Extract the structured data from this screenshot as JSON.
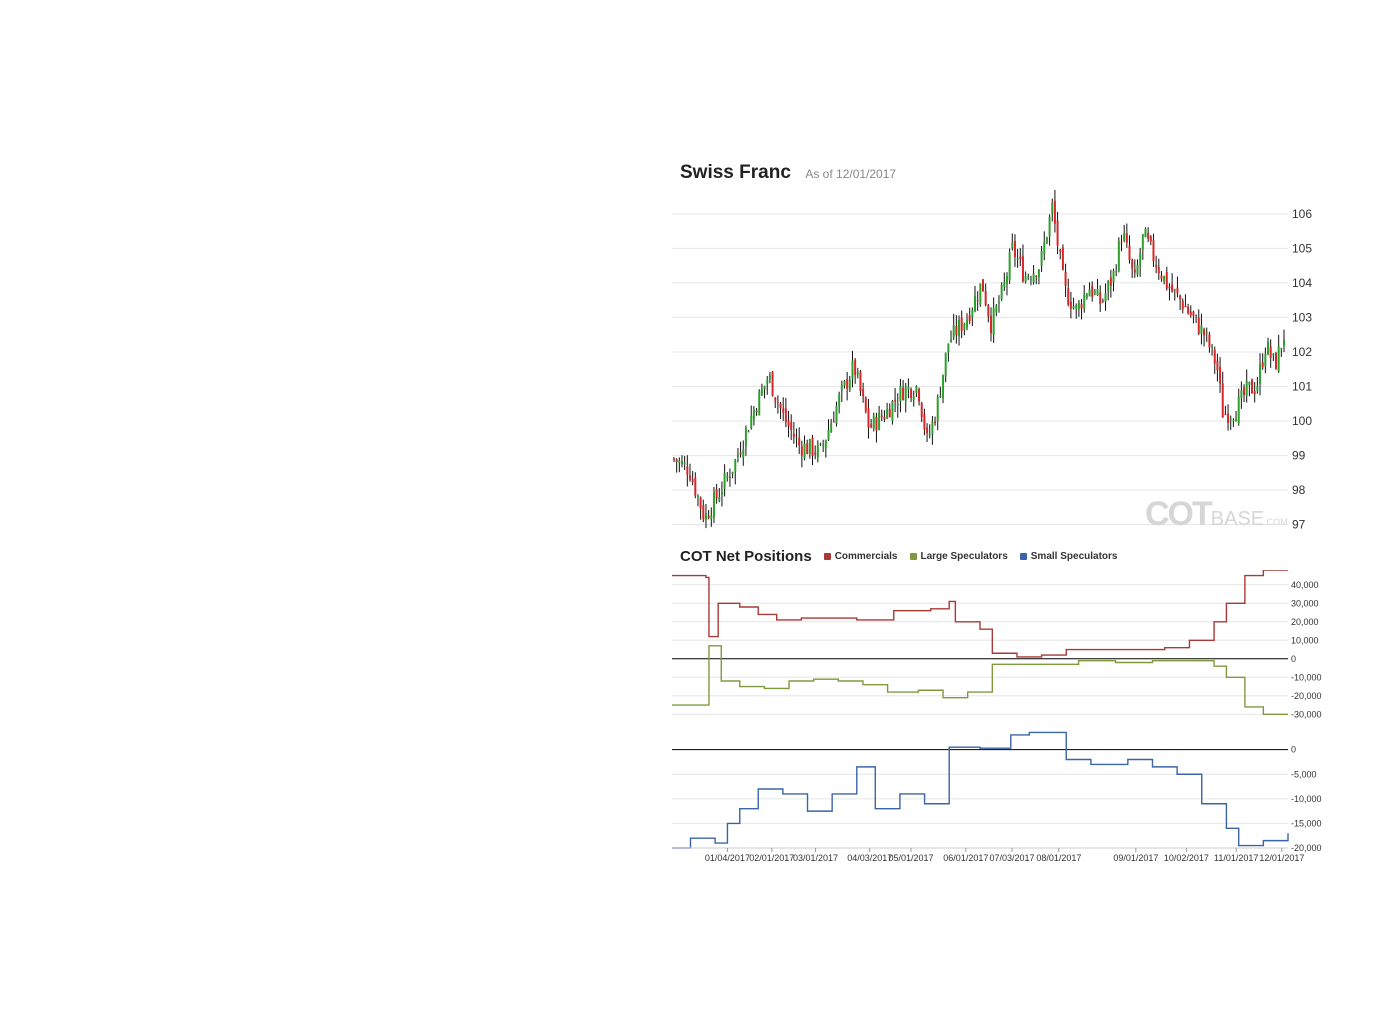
{
  "header": {
    "title": "Swiss Franc",
    "as_of": "As of 12/01/2017"
  },
  "watermark": {
    "part1": "COT",
    "part2": "BASE",
    "part3": ".COM"
  },
  "cot": {
    "title": "COT Net Positions",
    "legend": [
      {
        "label": "Commercials",
        "color": "#a83a36"
      },
      {
        "label": "Large Speculators",
        "color": "#7f9a3d"
      },
      {
        "label": "Small Speculators",
        "color": "#3a64a8"
      }
    ]
  },
  "chart_data": [
    {
      "type": "candlestick",
      "title": "Swiss Franc",
      "subtitle": "As of 12/01/2017",
      "ylim": [
        96.7,
        106.4
      ],
      "y_ticks": [
        "106",
        "105",
        "104",
        "103",
        "102",
        "101",
        "100",
        "99",
        "98",
        "97"
      ],
      "grid": true,
      "up_color": "#2ca02c",
      "down_color": "#d62728",
      "close_path": [
        {
          "t": 0,
          "v": 98.9
        },
        {
          "t": 0.025,
          "v": 98.6
        },
        {
          "t": 0.05,
          "v": 97.2
        },
        {
          "t": 0.07,
          "v": 97.8
        },
        {
          "t": 0.1,
          "v": 98.8
        },
        {
          "t": 0.13,
          "v": 100.3
        },
        {
          "t": 0.155,
          "v": 101.3
        },
        {
          "t": 0.18,
          "v": 100.1
        },
        {
          "t": 0.205,
          "v": 99.3
        },
        {
          "t": 0.24,
          "v": 99.1
        },
        {
          "t": 0.27,
          "v": 100.6
        },
        {
          "t": 0.295,
          "v": 101.6
        },
        {
          "t": 0.32,
          "v": 99.8
        },
        {
          "t": 0.345,
          "v": 100.2
        },
        {
          "t": 0.375,
          "v": 100.9
        },
        {
          "t": 0.4,
          "v": 101.0
        },
        {
          "t": 0.415,
          "v": 99.4
        },
        {
          "t": 0.43,
          "v": 100.3
        },
        {
          "t": 0.45,
          "v": 102.3
        },
        {
          "t": 0.48,
          "v": 103.0
        },
        {
          "t": 0.505,
          "v": 104.0
        },
        {
          "t": 0.52,
          "v": 102.8
        },
        {
          "t": 0.54,
          "v": 103.8
        },
        {
          "t": 0.555,
          "v": 105.0
        },
        {
          "t": 0.575,
          "v": 104.2
        },
        {
          "t": 0.6,
          "v": 104.5
        },
        {
          "t": 0.62,
          "v": 106.2
        },
        {
          "t": 0.64,
          "v": 103.8
        },
        {
          "t": 0.66,
          "v": 103.2
        },
        {
          "t": 0.68,
          "v": 103.9
        },
        {
          "t": 0.7,
          "v": 103.4
        },
        {
          "t": 0.72,
          "v": 104.2
        },
        {
          "t": 0.735,
          "v": 105.5
        },
        {
          "t": 0.755,
          "v": 104.0
        },
        {
          "t": 0.77,
          "v": 105.4
        },
        {
          "t": 0.79,
          "v": 104.6
        },
        {
          "t": 0.81,
          "v": 103.9
        },
        {
          "t": 0.83,
          "v": 103.5
        },
        {
          "t": 0.85,
          "v": 103.0
        },
        {
          "t": 0.87,
          "v": 102.5
        },
        {
          "t": 0.89,
          "v": 101.6
        },
        {
          "t": 0.9,
          "v": 100.2
        },
        {
          "t": 0.92,
          "v": 100.3
        },
        {
          "t": 0.94,
          "v": 100.9
        },
        {
          "t": 0.955,
          "v": 101.0
        },
        {
          "t": 0.97,
          "v": 102.2
        },
        {
          "t": 0.985,
          "v": 101.6
        },
        {
          "t": 1,
          "v": 102.5
        }
      ]
    },
    {
      "type": "line",
      "title": "COT Net Positions",
      "x_tick_labels": [
        "01/04/2017",
        "02/01/2017",
        "03/01/2017",
        "04/03/2017",
        "05/01/2017",
        "06/01/2017",
        "07/03/2017",
        "08/01/2017",
        "09/01/2017",
        "10/02/2017",
        "11/01/2017",
        "12/01/2017"
      ],
      "x_tick_positions": [
        0.09,
        0.162,
        0.233,
        0.321,
        0.388,
        0.477,
        0.552,
        0.628,
        0.753,
        0.835,
        0.916,
        0.99
      ],
      "panels": [
        {
          "ylim": [
            -32000,
            48000
          ],
          "y_ticks": [
            40000,
            30000,
            20000,
            10000,
            0,
            -10000,
            -20000,
            -30000
          ],
          "y_tick_labels": [
            "40,000",
            "30,000",
            "20,000",
            "10,000",
            "0",
            "-10,000",
            "-20,000",
            "-30,000"
          ],
          "series": [
            {
              "name": "Commercials",
              "color": "#a83a36",
              "points": [
                {
                  "t": 0,
                  "v": 45000
                },
                {
                  "t": 0.055,
                  "v": 44000
                },
                {
                  "t": 0.06,
                  "v": 12000
                },
                {
                  "t": 0.075,
                  "v": 30000
                },
                {
                  "t": 0.11,
                  "v": 28000
                },
                {
                  "t": 0.14,
                  "v": 24000
                },
                {
                  "t": 0.17,
                  "v": 21000
                },
                {
                  "t": 0.21,
                  "v": 22000
                },
                {
                  "t": 0.25,
                  "v": 22000
                },
                {
                  "t": 0.3,
                  "v": 21000
                },
                {
                  "t": 0.36,
                  "v": 26000
                },
                {
                  "t": 0.42,
                  "v": 27000
                },
                {
                  "t": 0.45,
                  "v": 31000
                },
                {
                  "t": 0.46,
                  "v": 20000
                },
                {
                  "t": 0.5,
                  "v": 16000
                },
                {
                  "t": 0.52,
                  "v": 3000
                },
                {
                  "t": 0.56,
                  "v": 1000
                },
                {
                  "t": 0.6,
                  "v": 2000
                },
                {
                  "t": 0.64,
                  "v": 5000
                },
                {
                  "t": 0.7,
                  "v": 5000
                },
                {
                  "t": 0.76,
                  "v": 5000
                },
                {
                  "t": 0.8,
                  "v": 6000
                },
                {
                  "t": 0.84,
                  "v": 10000
                },
                {
                  "t": 0.88,
                  "v": 20000
                },
                {
                  "t": 0.9,
                  "v": 30000
                },
                {
                  "t": 0.93,
                  "v": 45000
                },
                {
                  "t": 0.96,
                  "v": 48000
                },
                {
                  "t": 1,
                  "v": 48000
                }
              ]
            },
            {
              "name": "Large Speculators",
              "color": "#7f9a3d",
              "points": [
                {
                  "t": 0,
                  "v": -25000
                },
                {
                  "t": 0.055,
                  "v": -25000
                },
                {
                  "t": 0.06,
                  "v": 7000
                },
                {
                  "t": 0.07,
                  "v": 7000
                },
                {
                  "t": 0.08,
                  "v": -12000
                },
                {
                  "t": 0.11,
                  "v": -15000
                },
                {
                  "t": 0.15,
                  "v": -16000
                },
                {
                  "t": 0.19,
                  "v": -12000
                },
                {
                  "t": 0.23,
                  "v": -11000
                },
                {
                  "t": 0.27,
                  "v": -12000
                },
                {
                  "t": 0.31,
                  "v": -14000
                },
                {
                  "t": 0.35,
                  "v": -18000
                },
                {
                  "t": 0.4,
                  "v": -17000
                },
                {
                  "t": 0.44,
                  "v": -21000
                },
                {
                  "t": 0.48,
                  "v": -18000
                },
                {
                  "t": 0.52,
                  "v": -3000
                },
                {
                  "t": 0.56,
                  "v": -3000
                },
                {
                  "t": 0.6,
                  "v": -3000
                },
                {
                  "t": 0.66,
                  "v": -1000
                },
                {
                  "t": 0.72,
                  "v": -2000
                },
                {
                  "t": 0.78,
                  "v": -1000
                },
                {
                  "t": 0.84,
                  "v": -1000
                },
                {
                  "t": 0.88,
                  "v": -4000
                },
                {
                  "t": 0.9,
                  "v": -10000
                },
                {
                  "t": 0.93,
                  "v": -26000
                },
                {
                  "t": 0.96,
                  "v": -30000
                },
                {
                  "t": 1,
                  "v": -30000
                }
              ]
            }
          ]
        },
        {
          "ylim": [
            -20000,
            4000
          ],
          "y_ticks": [
            0,
            -5000,
            -10000,
            -15000,
            -20000
          ],
          "y_tick_labels": [
            "0",
            "-5,000",
            "-10,000",
            "-15,000",
            "-20,000"
          ],
          "series": [
            {
              "name": "Small Speculators",
              "color": "#3a64a8",
              "points": [
                {
                  "t": 0,
                  "v": -20000
                },
                {
                  "t": 0.03,
                  "v": -18000
                },
                {
                  "t": 0.07,
                  "v": -19000
                },
                {
                  "t": 0.09,
                  "v": -15000
                },
                {
                  "t": 0.11,
                  "v": -12000
                },
                {
                  "t": 0.14,
                  "v": -8000
                },
                {
                  "t": 0.18,
                  "v": -9000
                },
                {
                  "t": 0.22,
                  "v": -12500
                },
                {
                  "t": 0.26,
                  "v": -9000
                },
                {
                  "t": 0.3,
                  "v": -3500
                },
                {
                  "t": 0.33,
                  "v": -12000
                },
                {
                  "t": 0.37,
                  "v": -9000
                },
                {
                  "t": 0.41,
                  "v": -11000
                },
                {
                  "t": 0.45,
                  "v": 500
                },
                {
                  "t": 0.5,
                  "v": 300
                },
                {
                  "t": 0.55,
                  "v": 3000
                },
                {
                  "t": 0.58,
                  "v": 3500
                },
                {
                  "t": 0.62,
                  "v": 3500
                },
                {
                  "t": 0.64,
                  "v": -2000
                },
                {
                  "t": 0.68,
                  "v": -3000
                },
                {
                  "t": 0.74,
                  "v": -2000
                },
                {
                  "t": 0.78,
                  "v": -3500
                },
                {
                  "t": 0.82,
                  "v": -5000
                },
                {
                  "t": 0.86,
                  "v": -11000
                },
                {
                  "t": 0.9,
                  "v": -16000
                },
                {
                  "t": 0.92,
                  "v": -19500
                },
                {
                  "t": 0.96,
                  "v": -18500
                },
                {
                  "t": 1,
                  "v": -17000
                }
              ]
            }
          ]
        }
      ]
    }
  ]
}
